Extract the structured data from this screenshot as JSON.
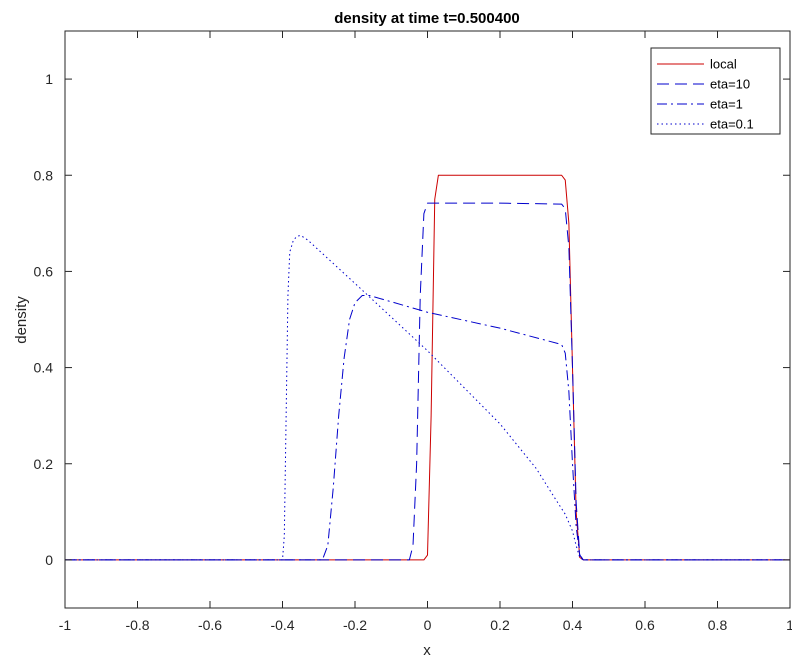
{
  "chart_data": {
    "type": "line",
    "title": "density at time t=0.500400",
    "xlabel": "x",
    "ylabel": "density",
    "xlim": [
      -1,
      1
    ],
    "ylim": [
      -0.1,
      1.1
    ],
    "x_ticks": [
      -1,
      -0.8,
      -0.6,
      -0.4,
      -0.2,
      0,
      0.2,
      0.4,
      0.6,
      0.8,
      1
    ],
    "x_tick_labels": [
      "-1",
      "-0.8",
      "-0.6",
      "-0.4",
      "-0.2",
      "0",
      "0.2",
      "0.4",
      "0.6",
      "0.8",
      "1"
    ],
    "y_ticks": [
      0,
      0.2,
      0.4,
      0.6,
      0.8,
      1
    ],
    "y_tick_labels": [
      "0",
      "0.2",
      "0.4",
      "0.6",
      "0.8",
      "1"
    ],
    "grid": false,
    "legend_position": "top-right",
    "series": [
      {
        "name": "local",
        "color": "#cc0000",
        "dash": "solid",
        "points": [
          [
            -1,
            0
          ],
          [
            -0.01,
            0
          ],
          [
            0,
            0.01
          ],
          [
            0.01,
            0.3
          ],
          [
            0.02,
            0.75
          ],
          [
            0.03,
            0.8
          ],
          [
            0.37,
            0.8
          ],
          [
            0.38,
            0.79
          ],
          [
            0.39,
            0.7
          ],
          [
            0.4,
            0.4
          ],
          [
            0.41,
            0.1
          ],
          [
            0.42,
            0.005
          ],
          [
            0.43,
            0
          ],
          [
            1,
            0
          ]
        ]
      },
      {
        "name": "eta=10",
        "color": "#0000cc",
        "dash": "dashed",
        "points": [
          [
            -1,
            0
          ],
          [
            -0.05,
            0
          ],
          [
            -0.04,
            0.03
          ],
          [
            -0.03,
            0.2
          ],
          [
            -0.02,
            0.55
          ],
          [
            -0.01,
            0.72
          ],
          [
            0,
            0.742
          ],
          [
            0.2,
            0.742
          ],
          [
            0.37,
            0.74
          ],
          [
            0.38,
            0.73
          ],
          [
            0.39,
            0.65
          ],
          [
            0.4,
            0.4
          ],
          [
            0.41,
            0.12
          ],
          [
            0.42,
            0.01
          ],
          [
            0.43,
            0
          ],
          [
            1,
            0
          ]
        ]
      },
      {
        "name": "eta=1",
        "color": "#0000cc",
        "dash": "dashdot",
        "points": [
          [
            -1,
            0
          ],
          [
            -0.29,
            0
          ],
          [
            -0.275,
            0.03
          ],
          [
            -0.26,
            0.15
          ],
          [
            -0.245,
            0.3
          ],
          [
            -0.23,
            0.42
          ],
          [
            -0.215,
            0.5
          ],
          [
            -0.2,
            0.535
          ],
          [
            -0.18,
            0.55
          ],
          [
            -0.16,
            0.55
          ],
          [
            0,
            0.515
          ],
          [
            0.2,
            0.482
          ],
          [
            0.37,
            0.448
          ],
          [
            0.38,
            0.43
          ],
          [
            0.39,
            0.35
          ],
          [
            0.4,
            0.2
          ],
          [
            0.41,
            0.07
          ],
          [
            0.42,
            0.01
          ],
          [
            0.43,
            0
          ],
          [
            1,
            0
          ]
        ]
      },
      {
        "name": "eta=0.1",
        "color": "#0000cc",
        "dash": "dotted",
        "points": [
          [
            -1,
            0
          ],
          [
            -0.4,
            0
          ],
          [
            -0.395,
            0.05
          ],
          [
            -0.39,
            0.3
          ],
          [
            -0.385,
            0.55
          ],
          [
            -0.38,
            0.64
          ],
          [
            -0.37,
            0.665
          ],
          [
            -0.36,
            0.673
          ],
          [
            -0.35,
            0.675
          ],
          [
            -0.33,
            0.665
          ],
          [
            -0.2,
            0.575
          ],
          [
            0,
            0.435
          ],
          [
            0.2,
            0.283
          ],
          [
            0.3,
            0.19
          ],
          [
            0.35,
            0.13
          ],
          [
            0.38,
            0.095
          ],
          [
            0.4,
            0.06
          ],
          [
            0.41,
            0.03
          ],
          [
            0.42,
            0.005
          ],
          [
            0.43,
            0
          ],
          [
            1,
            0
          ]
        ]
      }
    ]
  }
}
